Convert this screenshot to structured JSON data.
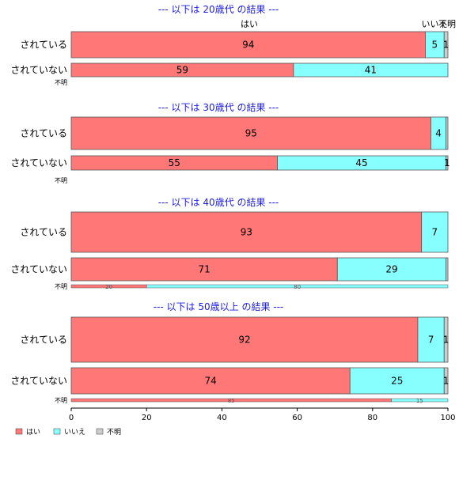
{
  "chart_data": {
    "type": "bar",
    "orientation": "horizontal",
    "stacked": true,
    "percent": true,
    "xlim": [
      0,
      100
    ],
    "xticks": [
      0,
      20,
      40,
      60,
      80,
      100
    ],
    "category_names": [
      "はい",
      "いいえ",
      "不明"
    ],
    "colors": {
      "はい": "#ff7777",
      "いいえ": "#88ffff",
      "不明": "#cccccc"
    },
    "legend_position": "bottom-left",
    "top_column_labels": [
      "はい",
      "いいえ",
      "不明"
    ],
    "panels": [
      {
        "title": "--- 以下は 20歳代 の結果 ---",
        "rows": [
          {
            "label": "されている",
            "values": [
              94,
              5,
              1
            ],
            "labels": [
              "94",
              "5",
              "1"
            ]
          },
          {
            "label": "されていない",
            "values": [
              59,
              41,
              0
            ],
            "labels": [
              "59",
              "41",
              ""
            ]
          },
          {
            "label": "不明",
            "values": [
              0,
              0,
              0
            ],
            "labels": [
              "",
              "",
              ""
            ]
          }
        ]
      },
      {
        "title": "--- 以下は 30歳代 の結果 ---",
        "rows": [
          {
            "label": "されている",
            "values": [
              95,
              4,
              0.5
            ],
            "labels": [
              "95",
              "4",
              ""
            ]
          },
          {
            "label": "されていない",
            "values": [
              55,
              45,
              0.5
            ],
            "labels": [
              "55",
              "45",
              "1"
            ]
          },
          {
            "label": "不明",
            "values": [
              0,
              0,
              0
            ],
            "labels": [
              "",
              "",
              ""
            ]
          }
        ]
      },
      {
        "title": "--- 以下は 40歳代 の結果 ---",
        "rows": [
          {
            "label": "されている",
            "values": [
              93,
              7,
              0
            ],
            "labels": [
              "93",
              "7",
              ""
            ]
          },
          {
            "label": "されていない",
            "values": [
              71,
              29,
              0.5
            ],
            "labels": [
              "71",
              "29",
              ""
            ]
          },
          {
            "label": "不明",
            "values": [
              20,
              80,
              0
            ],
            "labels": [
              "20",
              "80",
              ""
            ]
          }
        ]
      },
      {
        "title": "--- 以下は 50歳以上 の結果 ---",
        "rows": [
          {
            "label": "されている",
            "values": [
              92,
              7,
              1
            ],
            "labels": [
              "92",
              "7",
              "1"
            ]
          },
          {
            "label": "されていない",
            "values": [
              74,
              25,
              1
            ],
            "labels": [
              "74",
              "25",
              "1"
            ]
          },
          {
            "label": "不明",
            "values": [
              85,
              15,
              0
            ],
            "labels": [
              "85",
              "15",
              ""
            ]
          }
        ]
      }
    ]
  }
}
